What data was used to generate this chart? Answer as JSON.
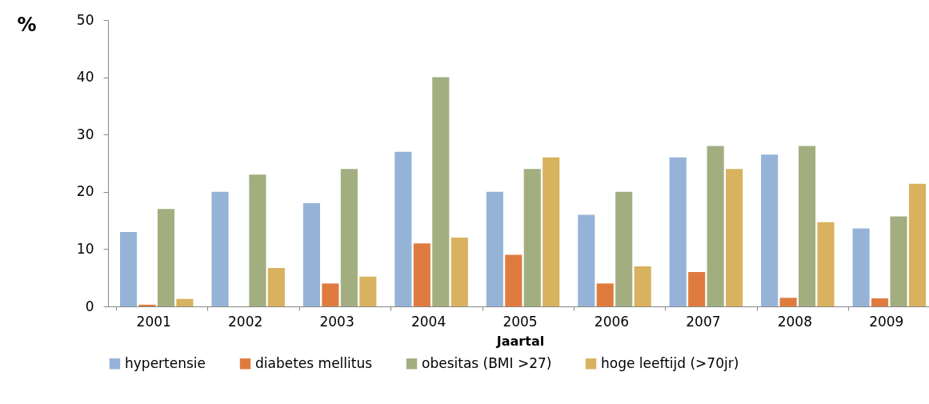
{
  "chart_data": {
    "type": "bar",
    "xlabel": "Jaartal",
    "ylabel": "%",
    "categories": [
      "2001",
      "2002",
      "2003",
      "2004",
      "2005",
      "2006",
      "2007",
      "2008",
      "2009"
    ],
    "series": [
      {
        "name": "hypertensie",
        "color": "#95b3d7",
        "values": [
          13,
          20,
          18,
          27,
          20,
          16,
          26,
          26.5,
          13.6
        ]
      },
      {
        "name": "diabetes mellitus",
        "color": "#e07b40",
        "values": [
          0.3,
          0,
          4,
          11,
          9,
          4,
          6,
          1.5,
          1.4
        ]
      },
      {
        "name": "obesitas (BMI >27)",
        "color": "#a2ae80",
        "values": [
          17,
          23,
          24,
          40,
          24,
          20,
          28,
          28,
          15.7
        ]
      },
      {
        "name": "hoge leeftijd (>70jr)",
        "color": "#d9b25f",
        "values": [
          1.3,
          6.7,
          5.2,
          12,
          26,
          7,
          24,
          14.7,
          21.4
        ]
      }
    ],
    "ylim": [
      0,
      50
    ],
    "yticks": [
      0,
      10,
      20,
      30,
      40,
      50
    ],
    "grid": false,
    "legend": "bottom"
  }
}
